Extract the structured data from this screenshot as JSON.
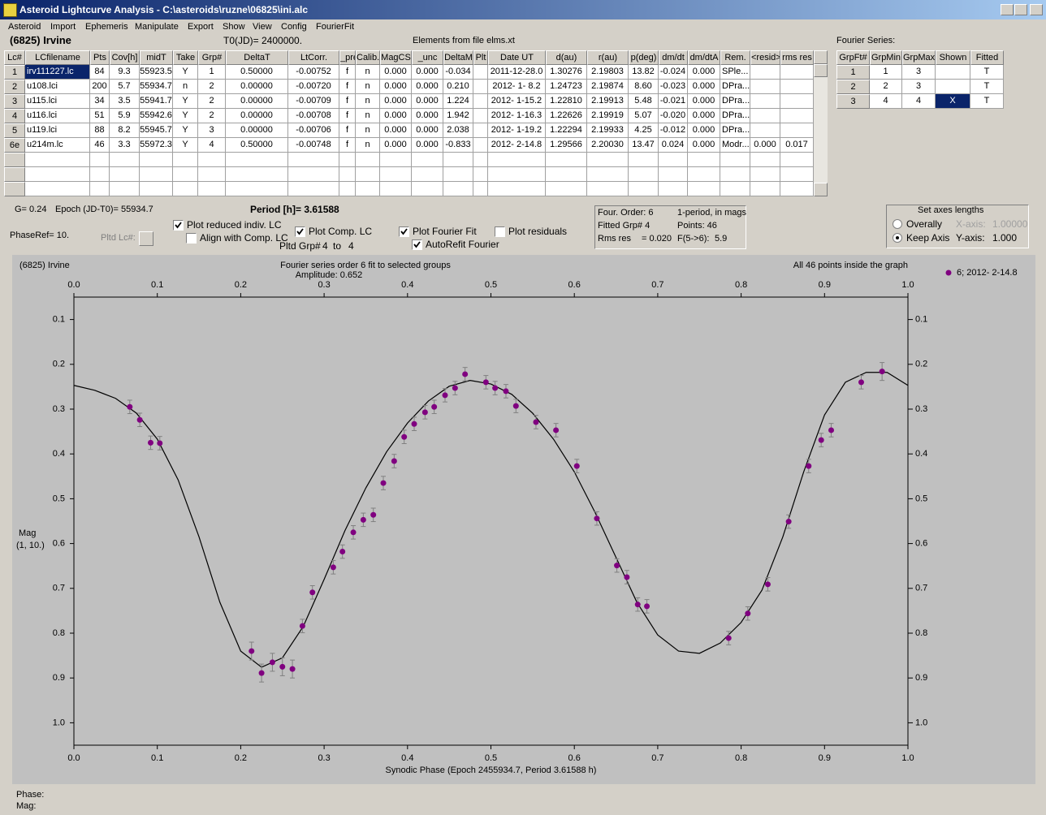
{
  "window": {
    "title": "Asteroid Lightcurve Analysis - C:\\asteroids\\ruzne\\06825\\ini.alc",
    "menu": [
      "Asteroid",
      "Import",
      "Ephemeris",
      "Manipulate",
      "Export",
      "Show",
      "View",
      "Config",
      "FourierFit"
    ]
  },
  "header": {
    "asteroid": "(6825) Irvine",
    "t0": "T0(JD)= 2400000.",
    "elements": "Elements from file elms.xt",
    "fourier_label": "Fourier Series:"
  },
  "table": {
    "columns": [
      "Lc#",
      "LCfilename",
      "Pts",
      "Cov[h]",
      "midT",
      "Take",
      "Grp#",
      "DeltaT",
      "LtCorr.",
      "_pred",
      "Calib.",
      "MagCS",
      "_unc",
      "DeltaM",
      "Plt",
      "Date UT",
      "d(au)",
      "r(au)",
      "p(deg)",
      "dm/dt",
      "dm/dtA",
      "Rem.",
      "<resid>",
      "rms res"
    ],
    "rows": [
      [
        "1",
        "irv111227.lc",
        "84",
        "9.3",
        "55923.5",
        "Y",
        "1",
        "0.50000",
        "-0.00752",
        "f",
        "n",
        "0.000",
        "0.000",
        "-0.034",
        null,
        "2011-12-28.0",
        "1.30276",
        "2.19803",
        "13.82",
        "-0.024",
        "0.000",
        "SPle...",
        null,
        null
      ],
      [
        "2",
        "u108.lci",
        "200",
        "5.7",
        "55934.7",
        "n",
        "2",
        "0.00000",
        "-0.00720",
        "f",
        "n",
        "0.000",
        "0.000",
        "0.210",
        null,
        "2012- 1- 8.2",
        "1.24723",
        "2.19874",
        "8.60",
        "-0.023",
        "0.000",
        "DPra...",
        null,
        null
      ],
      [
        "3",
        "u115.lci",
        "34",
        "3.5",
        "55941.7",
        "Y",
        "2",
        "0.00000",
        "-0.00709",
        "f",
        "n",
        "0.000",
        "0.000",
        "1.224",
        null,
        "2012- 1-15.2",
        "1.22810",
        "2.19913",
        "5.48",
        "-0.021",
        "0.000",
        "DPra...",
        null,
        null
      ],
      [
        "4",
        "u116.lci",
        "51",
        "5.9",
        "55942.6",
        "Y",
        "2",
        "0.00000",
        "-0.00708",
        "f",
        "n",
        "0.000",
        "0.000",
        "1.942",
        null,
        "2012- 1-16.3",
        "1.22626",
        "2.19919",
        "5.07",
        "-0.020",
        "0.000",
        "DPra...",
        null,
        null
      ],
      [
        "5",
        "u119.lci",
        "88",
        "8.2",
        "55945.7",
        "Y",
        "3",
        "0.00000",
        "-0.00706",
        "f",
        "n",
        "0.000",
        "0.000",
        "2.038",
        null,
        "2012- 1-19.2",
        "1.22294",
        "2.19933",
        "4.25",
        "-0.012",
        "0.000",
        "DPra...",
        null,
        null
      ],
      [
        "6e",
        "u214m.lc",
        "46",
        "3.3",
        "55972.3",
        "Y",
        "4",
        "0.50000",
        "-0.00748",
        "f",
        "n",
        "0.000",
        "0.000",
        "-0.833",
        null,
        "2012- 2-14.8",
        "1.29566",
        "2.20030",
        "13.47",
        "0.024",
        "0.000",
        "Modr...",
        "0.000",
        "0.017"
      ]
    ]
  },
  "fourier_table": {
    "columns": [
      "GrpFt#",
      "GrpMin",
      "GrpMax",
      "Shown",
      "Fitted"
    ],
    "rows": [
      [
        "1",
        "1",
        "3",
        null,
        "T"
      ],
      [
        "2",
        "2",
        "3",
        null,
        "T"
      ],
      [
        "3",
        "4",
        "4",
        "X",
        "T"
      ]
    ]
  },
  "controls": {
    "g": "G= 0.24",
    "epoch": "Epoch (JD-T0)= 55934.7",
    "period": "Period [h]= 3.61588",
    "phase_ref": "PhaseRef= 10.",
    "pltd_lc": "Pltd Lc#:",
    "checkboxes": [
      {
        "label": "Plot reduced indiv. LC",
        "checked": true
      },
      {
        "label": "Align with Comp. LC",
        "checked": false
      },
      {
        "label": "Plot Comp. LC",
        "checked": true
      },
      {
        "label": "Plot Fourier Fit",
        "checked": true
      },
      {
        "label": "Plot residuals",
        "checked": false
      },
      {
        "label": "AutoRefit Fourier",
        "checked": true
      }
    ],
    "pltd_grp": "Pltd Grp#",
    "grp_from": "4",
    "grp_to_word": "to",
    "grp_to": "4"
  },
  "fourier_info": [
    "Four. Order:  6",
    "1-period, in mags",
    "Fitted Grp# 4",
    "Points: 46",
    "Rms res",
    "= 0.020",
    "F(5->6):",
    "5.9"
  ],
  "axes_box": {
    "title": "Set axes lengths",
    "options": [
      {
        "label": "Overally",
        "selected": false,
        "axis": "X-axis:",
        "value": "1.00000"
      },
      {
        "label": "Keep Axis",
        "selected": true,
        "axis": "Y-axis:",
        "value": "1.000"
      }
    ]
  },
  "chart_data": {
    "type": "scatter",
    "title": "(6825) Irvine",
    "subtitle": "Fourier series order 6 fit to selected groups",
    "amplitude": "Amplitude: 0.652",
    "note": "All 46 points inside the graph",
    "x_label": "Synodic Phase (Epoch 2455934.7, Period 3.61588 h)",
    "y_label": "Mag",
    "y_label2": "(1, 10.)",
    "xlim": [
      0,
      1
    ],
    "ylim": [
      0.05,
      1.05
    ],
    "y_inverted": true,
    "grid": false,
    "legend": "top-right",
    "xticks": [
      {
        "value": 0,
        "label": "0.0"
      },
      0.1,
      0.2,
      0.3,
      0.4,
      0.5,
      0.6,
      0.7,
      0.8,
      0.9,
      {
        "value": 1,
        "label": "1.0"
      }
    ],
    "yticks": [
      0.1,
      0.2,
      0.3,
      0.4,
      0.5,
      0.6,
      0.7,
      0.8,
      0.9,
      {
        "value": 1,
        "label": "1.0"
      }
    ],
    "series": [
      {
        "name": "6; 2012- 2-14.8",
        "color": "#800080",
        "x": [
          0.067,
          0.079,
          0.092,
          0.103,
          0.213,
          0.225,
          0.238,
          0.25,
          0.262,
          0.274,
          0.286,
          0.311,
          0.322,
          0.335,
          0.347,
          0.359,
          0.371,
          0.384,
          0.396,
          0.408,
          0.421,
          0.432,
          0.445,
          0.457,
          0.469,
          0.494,
          0.505,
          0.518,
          0.53,
          0.554,
          0.578,
          0.603,
          0.627,
          0.651,
          0.663,
          0.676,
          0.687,
          0.785,
          0.808,
          0.832,
          0.857,
          0.881,
          0.896,
          0.908,
          0.944,
          0.969
        ],
        "values": [
          0.295,
          0.324,
          0.375,
          0.376,
          0.84,
          0.889,
          0.865,
          0.875,
          0.88,
          0.784,
          0.709,
          0.653,
          0.618,
          0.575,
          0.547,
          0.536,
          0.465,
          0.416,
          0.362,
          0.333,
          0.307,
          0.295,
          0.269,
          0.253,
          0.222,
          0.24,
          0.253,
          0.26,
          0.293,
          0.329,
          0.347,
          0.427,
          0.544,
          0.649,
          0.675,
          0.736,
          0.74,
          0.811,
          0.756,
          0.691,
          0.551,
          0.427,
          0.369,
          0.347,
          0.24,
          0.216
        ],
        "errors": [
          0.015,
          0.015,
          0.015,
          0.015,
          0.02,
          0.02,
          0.02,
          0.02,
          0.02,
          0.015,
          0.015,
          0.015,
          0.015,
          0.015,
          0.015,
          0.015,
          0.015,
          0.015,
          0.015,
          0.015,
          0.015,
          0.015,
          0.015,
          0.015,
          0.015,
          0.015,
          0.015,
          0.015,
          0.015,
          0.015,
          0.015,
          0.015,
          0.015,
          0.015,
          0.015,
          0.015,
          0.015,
          0.015,
          0.015,
          0.015,
          0.015,
          0.015,
          0.015,
          0.015,
          0.015,
          0.02
        ]
      }
    ],
    "fit": {
      "color": "#000000",
      "x": [
        0,
        0.025,
        0.05,
        0.075,
        0.1,
        0.125,
        0.15,
        0.175,
        0.2,
        0.225,
        0.25,
        0.275,
        0.3,
        0.325,
        0.35,
        0.375,
        0.4,
        0.425,
        0.45,
        0.475,
        0.5,
        0.525,
        0.55,
        0.575,
        0.6,
        0.625,
        0.65,
        0.675,
        0.7,
        0.725,
        0.75,
        0.775,
        0.8,
        0.825,
        0.85,
        0.875,
        0.9,
        0.925,
        0.95,
        0.975,
        1
      ],
      "values": [
        0.247,
        0.258,
        0.276,
        0.309,
        0.367,
        0.458,
        0.585,
        0.731,
        0.84,
        0.876,
        0.855,
        0.785,
        0.68,
        0.571,
        0.476,
        0.395,
        0.331,
        0.282,
        0.249,
        0.236,
        0.244,
        0.267,
        0.309,
        0.367,
        0.44,
        0.531,
        0.631,
        0.731,
        0.804,
        0.84,
        0.845,
        0.822,
        0.776,
        0.704,
        0.585,
        0.44,
        0.313,
        0.24,
        0.218,
        0.218,
        0.247
      ]
    }
  },
  "status": {
    "phase": "Phase:",
    "mag": "Mag:"
  }
}
